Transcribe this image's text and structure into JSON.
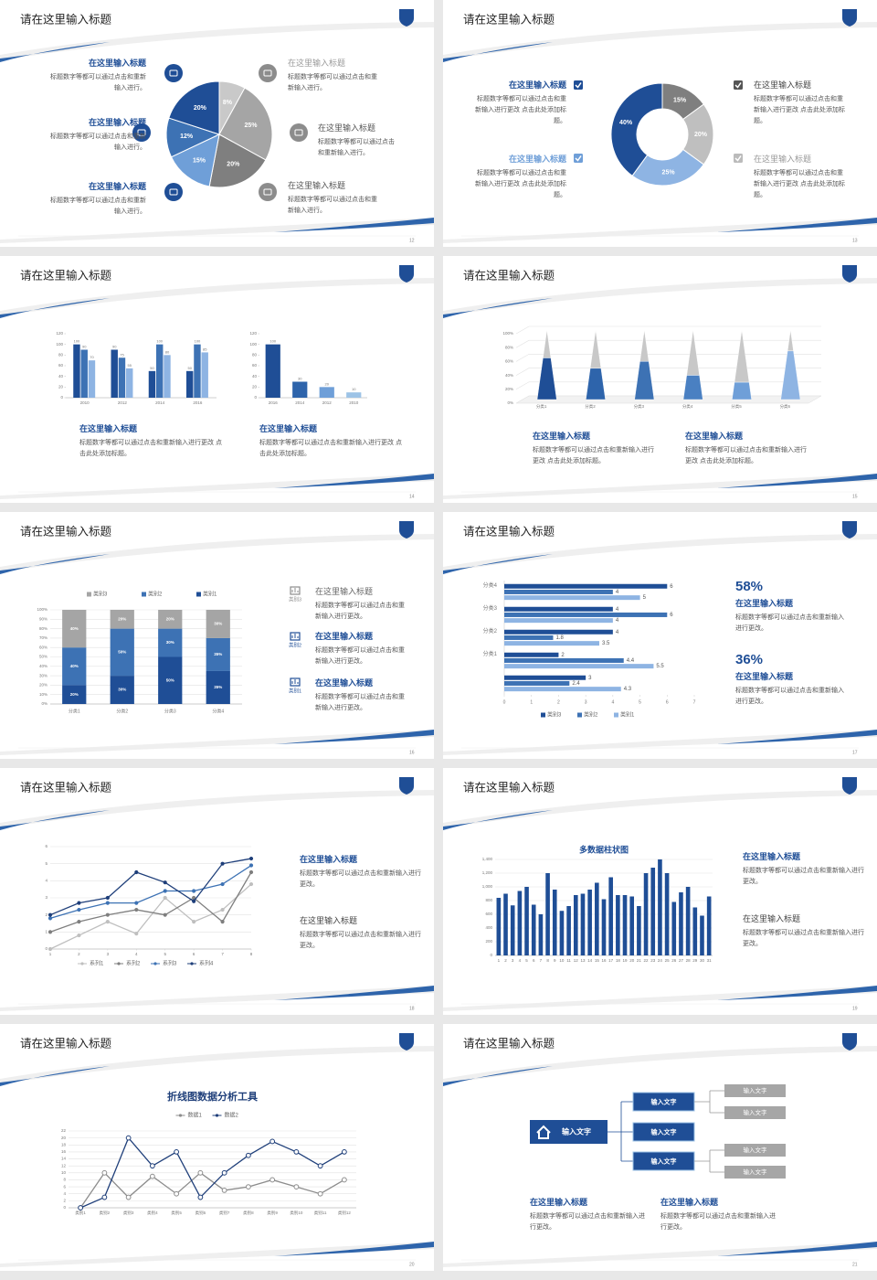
{
  "slides": [
    {
      "title": "请在这里输入标题",
      "page": "12",
      "chart": {
        "type": "pie",
        "values": [
          8,
          25,
          20,
          15,
          12,
          20
        ],
        "value_labels": [
          "8%",
          "25%",
          "20%",
          "15%",
          "12%",
          "20%"
        ],
        "colors": [
          "#c9c9c9",
          "#a5a5a5",
          "#7f7f7f",
          "#6f9fd8",
          "#3d72b4",
          "#1f4e96"
        ]
      },
      "blocks": [
        {
          "heading": "在这里输入标题",
          "text": "标题数字等都可以通过点击和重新输入进行。"
        },
        {
          "heading": "在这里输入标题",
          "text": "标题数字等都可以通过点击和重新输入进行。"
        },
        {
          "heading": "在这里输入标题",
          "text": "标题数字等都可以通过点击和重新输入进行。"
        },
        {
          "heading": "在这里输入标题",
          "text": "标题数字等都可以通过点击和重新输入进行。"
        },
        {
          "heading": "在这里输入标题",
          "text": "标题数字等都可以通过点击和重新输入进行。"
        },
        {
          "heading": "在这里输入标题",
          "text": "标题数字等都可以通过点击和重新输入进行。"
        }
      ]
    },
    {
      "title": "请在这里输入标题",
      "page": "13",
      "chart": {
        "type": "pie",
        "values": [
          15,
          20,
          25,
          40
        ],
        "value_labels": [
          "15%",
          "20%",
          "25%",
          "40%"
        ],
        "colors": [
          "#7f7f7f",
          "#bfbfbf",
          "#8eb4e3",
          "#1f4e96"
        ]
      },
      "blocks": [
        {
          "heading": "在这里输入标题",
          "text": "标题数字等都可以通过点击和重新输入进行更改 点击此处添加标题。"
        },
        {
          "heading": "在这里输入标题",
          "text": "标题数字等都可以通过点击和重新输入进行更改 点击此处添加标题。"
        },
        {
          "heading": "在这里输入标题",
          "text": "标题数字等都可以通过点击和重新输入进行更改 点击此处添加标题。"
        },
        {
          "heading": "在这里输入标题",
          "text": "标题数字等都可以通过点击和重新输入进行更改 点击此处添加标题。"
        }
      ]
    },
    {
      "title": "请在这里输入标题",
      "page": "14",
      "charts": [
        {
          "type": "bar",
          "categories": [
            "2010",
            "2012",
            "2014",
            "2016"
          ],
          "series": [
            {
              "color": "#1f4e96",
              "values": [
                100,
                90,
                50,
                50
              ]
            },
            {
              "color": "#3d72b4",
              "values": [
                90,
                75,
                100,
                100
              ]
            },
            {
              "color": "#8eb4e3",
              "values": [
                70,
                55,
                80,
                85
              ]
            }
          ],
          "ylim": [
            0,
            120
          ],
          "yticks": [
            0,
            20,
            40,
            60,
            80,
            100,
            120
          ],
          "data_labels": true
        },
        {
          "type": "bar",
          "categories": [
            "2016",
            "2014",
            "2012",
            "2010"
          ],
          "values": [
            100,
            30,
            20,
            10
          ],
          "colors": [
            "#1f4e96",
            "#2e64ab",
            "#6f9fd8",
            "#9dc3e6"
          ],
          "ylim": [
            0,
            120
          ],
          "yticks": [
            0,
            20,
            40,
            60,
            80,
            100,
            120
          ],
          "data_labels": true
        }
      ],
      "blocks": [
        {
          "heading": "在这里输入标题",
          "text": "标题数字等都可以通过点击和重新输入进行更改 点击此处添加标题。"
        },
        {
          "heading": "在这里输入标题",
          "text": "标题数字等都可以通过点击和重新输入进行更改 点击此处添加标题。"
        }
      ]
    },
    {
      "title": "请在这里输入标题",
      "page": "15",
      "chart": {
        "type": "pyramid",
        "categories": [
          "分类1",
          "分类2",
          "分类3",
          "分类4",
          "分类5",
          "分类6"
        ],
        "colors": [
          "#1f4e96",
          "#2e64ab",
          "#3d72b4",
          "#4a80c2",
          "#6f9fd8",
          "#8eb4e3"
        ],
        "series": [
          {
            "values": [
              60,
              45,
              55,
              35,
              25,
              70
            ]
          },
          {
            "color": "#c8c8c8",
            "values": [
              40,
              55,
              45,
              65,
              75,
              30
            ]
          }
        ],
        "ylim": [
          0,
          100
        ],
        "yticks": [
          {
            "value": 0,
            "label": "0%"
          },
          {
            "value": 20,
            "label": "20%"
          },
          {
            "value": 40,
            "label": "40%"
          },
          {
            "value": 60,
            "label": "60%"
          },
          {
            "value": 80,
            "label": "80%"
          },
          {
            "value": 100,
            "label": "100%"
          }
        ],
        "grid": true
      },
      "blocks": [
        {
          "heading": "在这里输入标题",
          "text": "标题数字等都可以通过点击和重新输入进行更改 点击此处添加标题。"
        },
        {
          "heading": "在这里输入标题",
          "text": "标题数字等都可以通过点击和重新输入进行更改 点击此处添加标题。"
        }
      ]
    },
    {
      "title": "请在这里输入标题",
      "page": "16",
      "chart": {
        "type": "stacked_bar",
        "categories": [
          "分类1",
          "分类2",
          "分类3",
          "分类4"
        ],
        "legend": "top",
        "series": [
          {
            "name": "类别1",
            "color": "#1f4e96",
            "values": [
              20,
              30,
              50,
              35
            ],
            "value_labels": [
              "20%",
              "30%",
              "50%",
              "35%"
            ]
          },
          {
            "name": "类别2",
            "color": "#3d72b4",
            "values": [
              40,
              50,
              30,
              35
            ],
            "value_labels": [
              "40%",
              "50%",
              "30%",
              "35%"
            ]
          },
          {
            "name": "类别3",
            "color": "#a5a5a5",
            "values": [
              40,
              20,
              20,
              30
            ],
            "value_labels": [
              "40%",
              "20%",
              "20%",
              "30%"
            ]
          }
        ],
        "ylim": [
          0,
          100
        ],
        "yticks": [
          {
            "value": 0,
            "label": "0%"
          },
          {
            "value": 10,
            "label": "10%"
          },
          {
            "value": 20,
            "label": "20%"
          },
          {
            "value": 30,
            "label": "30%"
          },
          {
            "value": 40,
            "label": "40%"
          },
          {
            "value": 50,
            "label": "50%"
          },
          {
            "value": 60,
            "label": "60%"
          },
          {
            "value": 70,
            "label": "70%"
          },
          {
            "value": 80,
            "label": "80%"
          },
          {
            "value": 90,
            "label": "90%"
          },
          {
            "value": 100,
            "label": "100%"
          }
        ],
        "grid": true
      },
      "blocks": [
        {
          "heading": "在这里输入标题",
          "text": "标题数字等都可以通过点击和重新输入进行更改。"
        },
        {
          "heading": "在这里输入标题",
          "text": "标题数字等都可以通过点击和重新输入进行更改。"
        },
        {
          "heading": "在这里输入标题",
          "text": "标题数字等都可以通过点击和重新输入进行更改。"
        }
      ]
    },
    {
      "title": "请在这里输入标题",
      "page": "17",
      "chart": {
        "type": "hbar",
        "categories": [
          null,
          "分类1",
          "分类2",
          "分类3",
          "分类4"
        ],
        "legend": "bottom",
        "series": [
          {
            "name": "类别3",
            "color": "#1f4e96",
            "values": [
              3,
              2,
              4,
              4,
              6
            ]
          },
          {
            "name": "类别2",
            "color": "#3d72b4",
            "values": [
              2.4,
              4.4,
              1.8,
              6,
              4
            ]
          },
          {
            "name": "类别1",
            "color": "#8eb4e3",
            "values": [
              4.3,
              5.5,
              3.5,
              4,
              5
            ]
          }
        ],
        "xlim": [
          0,
          7
        ],
        "xticks": [
          0,
          1,
          2,
          3,
          4,
          5,
          6,
          7
        ],
        "data_labels": true
      },
      "blocks": [
        {
          "stat": "58%",
          "heading": "在这里输入标题",
          "text": "标题数字等都可以通过点击和重新输入进行更改。"
        },
        {
          "stat": "36%",
          "heading": "在这里输入标题",
          "text": "标题数字等都可以通过点击和重新输入进行更改。"
        }
      ]
    },
    {
      "title": "请在这里输入标题",
      "page": "18",
      "chart": {
        "type": "line",
        "x": [
          1,
          2,
          3,
          4,
          5,
          6,
          7,
          8
        ],
        "xlim": [
          1,
          8
        ],
        "xticks": [
          1,
          2,
          3,
          4,
          5,
          6,
          7,
          8
        ],
        "ylim": [
          0,
          6
        ],
        "yticks": [
          0,
          1,
          2,
          3,
          4,
          5,
          6
        ],
        "grid": true,
        "legend": "bottom",
        "markers": "filled",
        "series": [
          {
            "name": "系列1",
            "color": "#bfbfbf",
            "values": [
              0,
              0.8,
              1.6,
              0.9,
              3,
              1.6,
              2.3,
              3.8
            ]
          },
          {
            "name": "系列2",
            "color": "#7f7f7f",
            "values": [
              1,
              1.6,
              2,
              2.3,
              2,
              3,
              1.6,
              4.5
            ]
          },
          {
            "name": "系列3",
            "color": "#3d72b4",
            "values": [
              1.8,
              2.3,
              2.7,
              2.7,
              3.4,
              3.4,
              3.8,
              4.9
            ]
          },
          {
            "name": "系列4",
            "color": "#1f3f7a",
            "values": [
              2,
              2.7,
              3,
              4.5,
              3.9,
              2.8,
              5,
              5.3
            ]
          }
        ]
      },
      "blocks": [
        {
          "heading": "在这里输入标题",
          "text": "标题数字等都可以通过点击和重新输入进行更改。"
        },
        {
          "heading": "在这里输入标题",
          "text": "标题数字等都可以通过点击和重新输入进行更改。"
        }
      ]
    },
    {
      "title": "请在这里输入标题",
      "page": "19",
      "chart": {
        "type": "bar",
        "title": "多数据柱状图",
        "color": "#1f4e96",
        "grid": true,
        "categories": [
          "1",
          "2",
          "3",
          "4",
          "5",
          "6",
          "7",
          "8",
          "9",
          "10",
          "11",
          "12",
          "13",
          "14",
          "15",
          "16",
          "17",
          "18",
          "19",
          "20",
          "21",
          "22",
          "23",
          "24",
          "25",
          "26",
          "27",
          "28",
          "29",
          "30",
          "31"
        ],
        "values": [
          840,
          900,
          730,
          940,
          1000,
          740,
          600,
          1200,
          960,
          650,
          720,
          880,
          900,
          960,
          1060,
          820,
          1140,
          880,
          880,
          860,
          720,
          1200,
          1280,
          1400,
          1200,
          780,
          920,
          1000,
          700,
          580,
          860
        ],
        "ylim": [
          0,
          1400
        ],
        "yticks": [
          0,
          200,
          400,
          600,
          800,
          {
            "value": 1000,
            "label": "1,000"
          },
          {
            "value": 1200,
            "label": "1,200"
          },
          {
            "value": 1400,
            "label": "1,400"
          }
        ]
      },
      "blocks": [
        {
          "heading": "在这里输入标题",
          "text": "标题数字等都可以通过点击和重新输入进行更改。"
        },
        {
          "heading": "在这里输入标题",
          "text": "标题数字等都可以通过点击和重新输入进行更改。"
        }
      ]
    },
    {
      "title": "请在这里输入标题",
      "page": "20",
      "chart": {
        "type": "line",
        "title": "折线图数据分析工具",
        "legend": "top",
        "markers": "open",
        "grid": true,
        "categories": [
          "类别1",
          "类别2",
          "类别3",
          "类别4",
          "类别5",
          "类别6",
          "类别7",
          "类别8",
          "类别9",
          "类别10",
          "类别11",
          "类别12"
        ],
        "ylim": [
          0,
          22
        ],
        "yticks": [
          0,
          2,
          4,
          6,
          8,
          10,
          12,
          14,
          16,
          18,
          20,
          22
        ],
        "series": [
          {
            "name": "数据1",
            "color": "#8c8c8c",
            "values": [
              0,
              10,
              3,
              9,
              4,
              10,
              5,
              6,
              8,
              6,
              4,
              8
            ]
          },
          {
            "name": "数据2",
            "color": "#1f3f7a",
            "values": [
              0,
              3,
              20,
              12,
              16,
              3,
              10,
              15,
              19,
              16,
              12,
              16
            ]
          }
        ]
      }
    },
    {
      "title": "请在这里输入标题",
      "page": "21",
      "diagram": {
        "root": "输入文字",
        "branches": [
          {
            "label": "输入文字",
            "children": [
              "输入文字",
              "输入文字"
            ]
          },
          {
            "label": "输入文字",
            "children": []
          },
          {
            "label": "输入文字",
            "children": [
              "输入文字",
              "输入文字"
            ]
          }
        ]
      },
      "blocks": [
        {
          "heading": "在这里输入标题",
          "text": "标题数字等都可以通过点击和重新输入进行更改。"
        },
        {
          "heading": "在这里输入标题",
          "text": "标题数字等都可以通过点击和重新输入进行更改。"
        }
      ]
    }
  ]
}
